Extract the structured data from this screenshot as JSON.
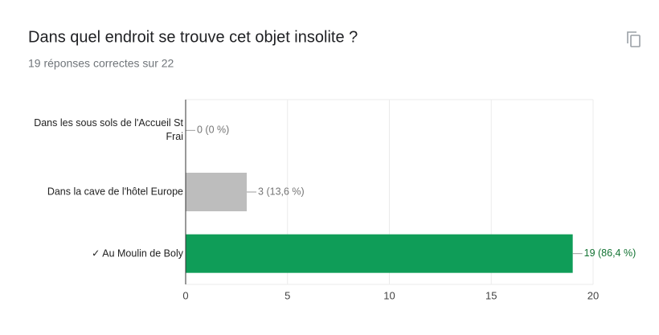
{
  "chart_data": {
    "type": "hbar",
    "title": "Dans quel endroit se trouve cet objet insolite ?",
    "subtitle": "19 réponses correctes sur 22",
    "categories": [
      "Dans les sous sols de l'Accueil St Frai",
      "Dans la cave de l'hôtel Europe",
      "✓ Au Moulin de Boly"
    ],
    "values": [
      0,
      3,
      19
    ],
    "value_labels": [
      "0 (0 %)",
      "3 (13,6 %)",
      "19 (86,4 %)"
    ],
    "colors": [
      "#bdbdbd",
      "#bdbdbd",
      "#0f9d58"
    ],
    "label_colors": [
      "#757575",
      "#757575",
      "#137333"
    ],
    "xlim": [
      0,
      20
    ],
    "xticks": [
      0,
      5,
      10,
      15,
      20
    ],
    "grid": true
  }
}
